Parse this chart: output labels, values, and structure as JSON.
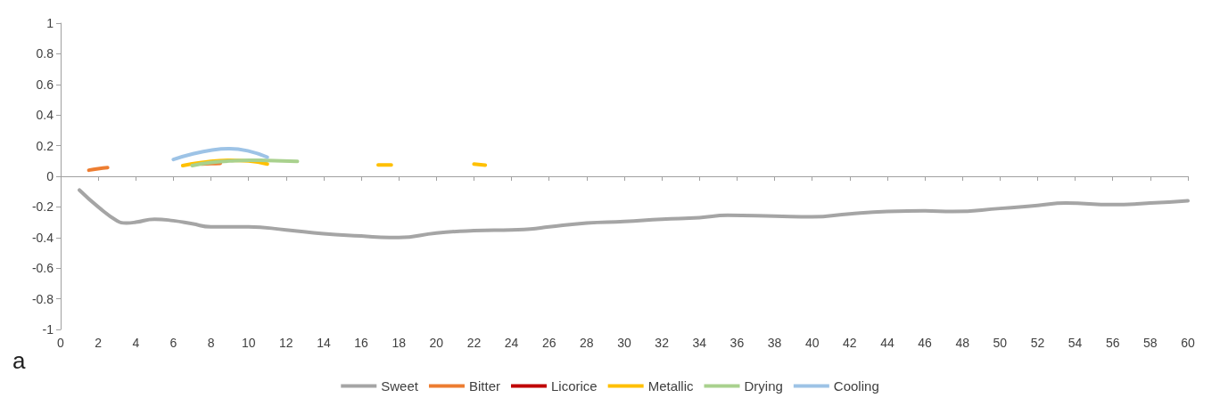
{
  "chart_data": {
    "type": "line",
    "annotations": [
      "a"
    ],
    "xlim": [
      0,
      60
    ],
    "xticks": [
      0,
      2,
      4,
      6,
      8,
      10,
      12,
      14,
      16,
      18,
      20,
      22,
      24,
      26,
      28,
      30,
      32,
      34,
      36,
      38,
      40,
      42,
      44,
      46,
      48,
      50,
      52,
      54,
      56,
      58,
      60
    ],
    "ylim": [
      -1,
      1
    ],
    "yticks": [
      -1,
      -0.8,
      -0.6,
      -0.4,
      -0.2,
      0,
      0.2,
      0.4,
      0.6,
      0.8,
      1
    ],
    "legend": "bottom",
    "marker": "none",
    "line_style": "solid",
    "series": [
      {
        "name": "Sweet",
        "color": "#a5a5a5",
        "x": [
          1,
          2,
          3,
          3.5,
          4,
          5,
          6,
          7,
          8,
          10,
          12,
          14,
          16,
          17.5,
          18,
          20,
          22,
          24,
          25,
          26,
          28,
          30,
          32,
          34,
          35.5,
          38,
          40,
          42,
          44,
          46,
          47.5,
          50,
          52,
          53.5,
          56,
          58,
          60
        ],
        "values": [
          -0.09,
          -0.2,
          -0.29,
          -0.305,
          -0.3,
          -0.28,
          -0.29,
          -0.31,
          -0.33,
          -0.33,
          -0.35,
          -0.375,
          -0.39,
          -0.4,
          -0.4,
          -0.37,
          -0.355,
          -0.35,
          -0.345,
          -0.33,
          -0.305,
          -0.295,
          -0.28,
          -0.27,
          -0.255,
          -0.26,
          -0.265,
          -0.245,
          -0.23,
          -0.225,
          -0.23,
          -0.21,
          -0.19,
          -0.175,
          -0.185,
          -0.175,
          -0.16
        ]
      },
      {
        "name": "Bitter",
        "color": "#ed7d31",
        "x": [
          1.5,
          2,
          2.5,
          5,
          7.5,
          8,
          8.5
        ],
        "values": [
          0.04,
          0.05,
          0.057,
          null,
          0.08,
          0.083,
          0.085
        ]
      },
      {
        "name": "Licorice",
        "color": "#c00000"
      },
      {
        "name": "Metallic",
        "color": "#ffc000",
        "x": [
          6.5,
          7.5,
          9,
          10,
          11,
          14,
          16.9,
          17.6,
          20,
          22,
          22.6
        ],
        "values": [
          0.07,
          0.09,
          0.105,
          0.1,
          0.08,
          null,
          0.074,
          0.074,
          null,
          0.08,
          0.073
        ]
      },
      {
        "name": "Drying",
        "color": "#a9d18e",
        "x": [
          7,
          8,
          9,
          10,
          11,
          12.6
        ],
        "values": [
          0.07,
          0.09,
          0.1,
          0.105,
          0.103,
          0.098
        ]
      },
      {
        "name": "Cooling",
        "color": "#9dc3e6",
        "x": [
          6,
          7,
          8,
          9,
          10,
          11
        ],
        "values": [
          0.11,
          0.145,
          0.17,
          0.18,
          0.165,
          0.125
        ]
      }
    ]
  }
}
